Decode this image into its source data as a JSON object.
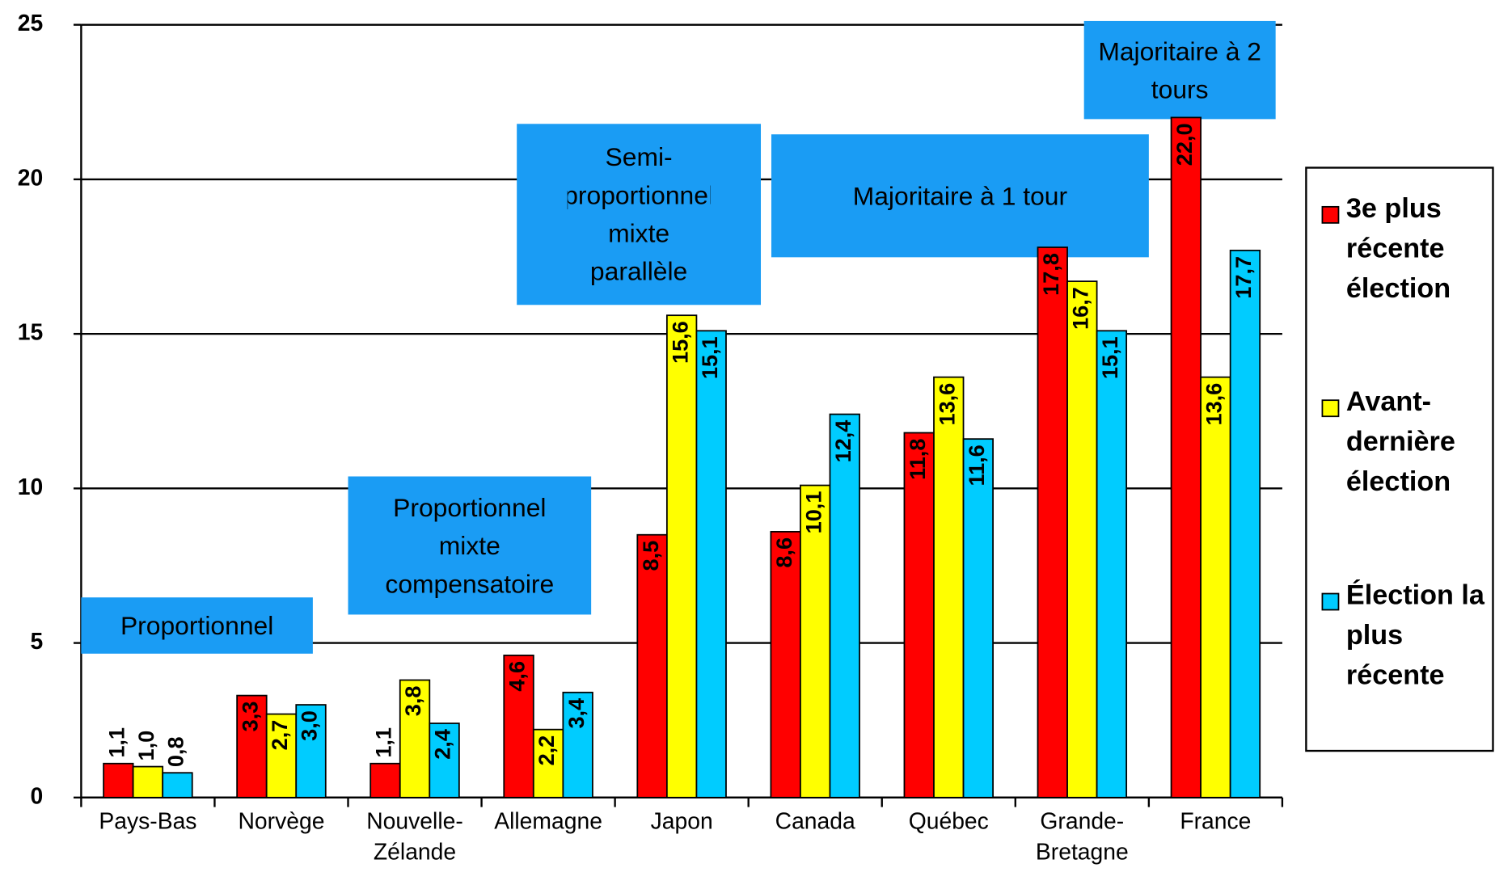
{
  "chart_data": {
    "type": "bar",
    "categories": [
      "Pays-Bas",
      "Norvège",
      "Nouvelle-Zélande",
      "Allemagne",
      "Japon",
      "Canada",
      "Québec",
      "Grande-Bretagne",
      "France"
    ],
    "series": [
      {
        "name": "3e plus récente élection",
        "color": "#ff0000",
        "values": [
          1.1,
          3.3,
          1.1,
          4.6,
          8.5,
          8.6,
          11.8,
          17.8,
          22.0
        ],
        "value_labels": [
          "1,1",
          "3,3",
          "1,1",
          "4,6",
          "8,5",
          "8,6",
          "11,8",
          "17,8",
          "22,0"
        ]
      },
      {
        "name": "Avant-dernière élection",
        "color": "#ffff00",
        "values": [
          1.0,
          2.7,
          3.8,
          2.2,
          15.6,
          10.1,
          13.6,
          16.7,
          13.6
        ],
        "value_labels": [
          "1,0",
          "2,7",
          "3,8",
          "2,2",
          "15,6",
          "10,1",
          "13,6",
          "16,7",
          "13,6"
        ]
      },
      {
        "name": "Élection la plus récente",
        "color": "#00ccff",
        "values": [
          0.8,
          3.0,
          2.4,
          3.4,
          15.1,
          12.4,
          11.6,
          15.1,
          17.7
        ],
        "value_labels": [
          "0,8",
          "3,0",
          "2,4",
          "3,4",
          "15,1",
          "12,4",
          "11,6",
          "15,1",
          "17,7"
        ]
      }
    ],
    "annotations": [
      "Proportionnel",
      "Proportionnel mixte compensatoire",
      "Semi-proportionnel mixte parallèle",
      "Majoritaire à 1 tour",
      "Majoritaire à 2 tours"
    ],
    "ylim": [
      0,
      25
    ],
    "yticks": [
      0,
      5,
      10,
      15,
      20,
      25
    ],
    "grid": true,
    "legend": "right"
  }
}
